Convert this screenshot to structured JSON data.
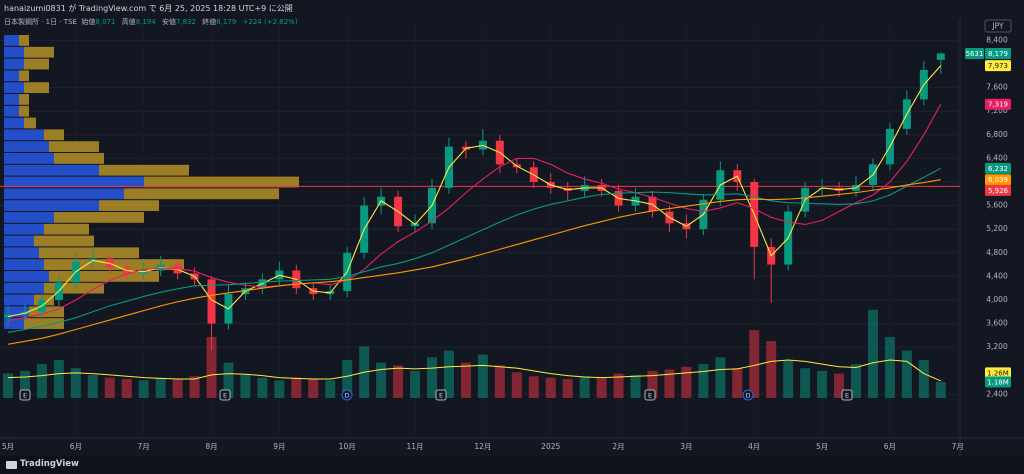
{
  "header": {
    "published": "hanaizumi0831 が TradingView.com で 6月 25, 2025 18:28 UTC+9 に公開"
  },
  "legend": {
    "symbol": "日本製鋼所 · 1日 · TSE",
    "items": [
      {
        "label": "始値",
        "value": "8,071"
      },
      {
        "label": "高値",
        "value": "8,194"
      },
      {
        "label": "安値",
        "value": "7,832"
      },
      {
        "label": "終値",
        "value": "8,179"
      }
    ],
    "change": "+224 (+2.82%)"
  },
  "events": [
    "E",
    "E",
    "D",
    "E",
    "E",
    "D",
    "E"
  ],
  "footer": "TradingView",
  "chart_data": {
    "type": "candlestick",
    "categories": [
      "5月",
      null,
      null,
      null,
      "6月",
      null,
      null,
      null,
      "7月",
      null,
      null,
      null,
      "8月",
      null,
      null,
      null,
      "9月",
      null,
      null,
      null,
      "10月",
      null,
      null,
      null,
      "11月",
      null,
      null,
      null,
      "12月",
      null,
      null,
      null,
      "2025",
      null,
      null,
      null,
      "2月",
      null,
      null,
      null,
      "3月",
      null,
      null,
      null,
      "4月",
      null,
      null,
      null,
      "5月",
      null,
      null,
      null,
      "6月",
      null,
      null,
      null,
      "7月"
    ],
    "open": [
      3700,
      3750,
      3800,
      4000,
      4300,
      4650,
      4700,
      4550,
      4450,
      4500,
      4600,
      4450,
      4350,
      3600,
      4100,
      4200,
      4350,
      4500,
      4200,
      4100,
      4150,
      4800,
      5600,
      5750,
      5250,
      5300,
      5900,
      6600,
      6550,
      6700,
      6300,
      6250,
      6000,
      5900,
      5850,
      5950,
      5850,
      5600,
      5750,
      5500,
      5300,
      5200,
      5700,
      6200,
      6000,
      4900,
      4600,
      5500,
      5900,
      5900,
      5850,
      5950,
      6300,
      6900,
      7400,
      8071,
      null
    ],
    "high": [
      3900,
      3950,
      4100,
      4400,
      4800,
      4850,
      4800,
      4650,
      4650,
      4750,
      4700,
      4550,
      4400,
      4250,
      4300,
      4450,
      4650,
      4600,
      4300,
      4250,
      4900,
      5750,
      5900,
      5850,
      5450,
      6050,
      6750,
      6700,
      6900,
      6800,
      6400,
      6350,
      6150,
      6000,
      6100,
      6050,
      5950,
      5900,
      5850,
      5600,
      5450,
      5800,
      6350,
      6300,
      6050,
      5050,
      5600,
      6000,
      6050,
      6000,
      6100,
      6400,
      7000,
      7550,
      8050,
      8194,
      null
    ],
    "low": [
      3550,
      3650,
      3700,
      3900,
      4200,
      4550,
      4450,
      4350,
      4350,
      4400,
      4350,
      4250,
      3150,
      3500,
      4000,
      4100,
      4250,
      4100,
      4000,
      4000,
      4050,
      4700,
      5450,
      5150,
      5150,
      5200,
      5800,
      6400,
      6450,
      6150,
      6150,
      5900,
      5800,
      5700,
      5750,
      5750,
      5500,
      5500,
      5400,
      5150,
      5050,
      5100,
      5600,
      5850,
      4350,
      3950,
      4500,
      5400,
      5750,
      5750,
      5750,
      5850,
      6200,
      6800,
      7300,
      7832,
      null
    ],
    "close": [
      3750,
      3800,
      4000,
      4300,
      4650,
      4700,
      4550,
      4450,
      4500,
      4600,
      4450,
      4350,
      3600,
      4100,
      4200,
      4350,
      4500,
      4200,
      4100,
      4150,
      4800,
      5600,
      5750,
      5250,
      5300,
      5900,
      6600,
      6550,
      6700,
      6300,
      6250,
      6000,
      5900,
      5850,
      5950,
      5850,
      5600,
      5750,
      5500,
      5300,
      5200,
      5700,
      6200,
      6000,
      4900,
      4600,
      5500,
      5900,
      5900,
      5850,
      5950,
      6300,
      6900,
      7400,
      7900,
      8179,
      null
    ],
    "close_label": "8,179",
    "up_color": "#089981",
    "down_color": "#f23645",
    "series": [
      {
        "color": "#ffeb3b",
        "last_label": "7,973",
        "values": [
          3720,
          3775,
          3900,
          4150,
          4480,
          4670,
          4620,
          4500,
          4480,
          4550,
          4520,
          4400,
          4000,
          3850,
          4150,
          4280,
          4420,
          4350,
          4150,
          4120,
          4480,
          5200,
          5680,
          5500,
          5280,
          5600,
          6250,
          6570,
          6620,
          6500,
          6270,
          6120,
          5950,
          5870,
          5900,
          5900,
          5720,
          5680,
          5620,
          5400,
          5250,
          5450,
          5950,
          6100,
          5450,
          4750,
          5050,
          5700,
          5900,
          5870,
          5900,
          6120,
          6600,
          7150,
          7650,
          7973,
          null
        ]
      },
      {
        "color": "#e91e63",
        "last_label": "7,319",
        "values": [
          3650,
          3700,
          3760,
          3850,
          4000,
          4180,
          4330,
          4440,
          4520,
          4540,
          4530,
          4490,
          4380,
          4300,
          4250,
          4220,
          4240,
          4270,
          4290,
          4260,
          4330,
          4520,
          4780,
          4990,
          5150,
          5340,
          5560,
          5820,
          6050,
          6260,
          6400,
          6400,
          6300,
          6150,
          6050,
          5980,
          5880,
          5820,
          5740,
          5640,
          5550,
          5500,
          5560,
          5650,
          5550,
          5400,
          5320,
          5280,
          5350,
          5500,
          5650,
          5780,
          6000,
          6350,
          6800,
          7319,
          null
        ]
      },
      {
        "color": "#089981",
        "last_label": "6,232",
        "values": [
          3450,
          3500,
          3560,
          3620,
          3700,
          3800,
          3900,
          3980,
          4060,
          4130,
          4190,
          4240,
          4250,
          4260,
          4280,
          4300,
          4320,
          4330,
          4340,
          4350,
          4400,
          4480,
          4560,
          4620,
          4700,
          4800,
          4930,
          5060,
          5190,
          5320,
          5440,
          5540,
          5620,
          5680,
          5740,
          5790,
          5810,
          5820,
          5830,
          5820,
          5800,
          5780,
          5790,
          5800,
          5750,
          5680,
          5650,
          5640,
          5630,
          5620,
          5630,
          5680,
          5780,
          5930,
          6080,
          6232,
          null
        ]
      },
      {
        "color": "#ff9800",
        "last_label": "6,039",
        "values": [
          3250,
          3300,
          3350,
          3420,
          3500,
          3580,
          3660,
          3740,
          3820,
          3900,
          3970,
          4030,
          4080,
          4120,
          4160,
          4200,
          4240,
          4270,
          4290,
          4310,
          4340,
          4380,
          4420,
          4460,
          4510,
          4560,
          4630,
          4700,
          4780,
          4860,
          4940,
          5020,
          5100,
          5180,
          5260,
          5330,
          5400,
          5460,
          5510,
          5550,
          5590,
          5630,
          5670,
          5700,
          5710,
          5700,
          5710,
          5730,
          5760,
          5790,
          5820,
          5860,
          5900,
          5950,
          5990,
          6039,
          null
        ]
      }
    ],
    "volume": {
      "vlim": [
        0,
        7000000
      ],
      "last_label": "1.18M",
      "label_color": "#089981",
      "values": [
        1800000,
        2000000,
        2500000,
        2800000,
        2200000,
        1700000,
        1500000,
        1400000,
        1300000,
        1500000,
        1400000,
        1600000,
        4500000,
        2600000,
        1700000,
        1500000,
        1300000,
        1500000,
        1400000,
        1300000,
        2800000,
        3800000,
        2600000,
        2400000,
        2000000,
        3000000,
        3500000,
        2600000,
        3200000,
        2400000,
        1900000,
        1600000,
        1500000,
        1400000,
        1600000,
        1500000,
        1800000,
        1700000,
        2000000,
        2100000,
        2300000,
        2500000,
        3000000,
        2200000,
        5000000,
        4200000,
        2800000,
        2200000,
        2000000,
        1800000,
        2500000,
        6500000,
        4500000,
        3500000,
        2800000,
        1180000,
        null
      ],
      "ma": {
        "color": "#ffeb3b",
        "last_label": "1.26M",
        "values": [
          1500000,
          1550000,
          1650000,
          1800000,
          1850000,
          1800000,
          1700000,
          1600000,
          1500000,
          1450000,
          1400000,
          1400000,
          1700000,
          1800000,
          1750000,
          1650000,
          1500000,
          1450000,
          1400000,
          1400000,
          1600000,
          1900000,
          2100000,
          2200000,
          2150000,
          2200000,
          2300000,
          2350000,
          2400000,
          2300000,
          2200000,
          2000000,
          1800000,
          1650000,
          1550000,
          1500000,
          1550000,
          1600000,
          1650000,
          1750000,
          1850000,
          1950000,
          2100000,
          2150000,
          2400000,
          2700000,
          2800000,
          2700000,
          2500000,
          2300000,
          2250000,
          2600000,
          2800000,
          2700000,
          1800000,
          1260000,
          null
        ]
      }
    },
    "volume_profile": {
      "xlim": [
        0,
        950
      ],
      "up_color": "#2962ff",
      "down_color": "#c9a227",
      "levels": [
        3600,
        3800,
        4000,
        4200,
        4400,
        4600,
        4800,
        5000,
        5200,
        5400,
        5600,
        5800,
        6000,
        6200,
        6400,
        6600,
        6800,
        7000,
        7200,
        7400,
        7600,
        7800,
        8000,
        8200,
        8400
      ],
      "up": [
        20,
        25,
        30,
        40,
        45,
        40,
        35,
        30,
        40,
        50,
        95,
        120,
        140,
        95,
        50,
        45,
        40,
        20,
        15,
        15,
        20,
        15,
        20,
        20,
        15
      ],
      "down": [
        40,
        35,
        20,
        60,
        110,
        140,
        100,
        60,
        45,
        90,
        60,
        155,
        155,
        90,
        50,
        50,
        20,
        12,
        10,
        10,
        25,
        10,
        25,
        30,
        10
      ]
    },
    "hline": {
      "value": 5926,
      "label": "5,926",
      "color": "#f23645"
    },
    "ylim": [
      2220,
      8780
    ],
    "yticks": [
      {
        "value": 2400,
        "label": "2,400"
      },
      {
        "value": 3200,
        "label": "3,200"
      },
      {
        "value": 3600,
        "label": "3,600"
      },
      {
        "value": 4000,
        "label": "4,000"
      },
      {
        "value": 4400,
        "label": "4,400"
      },
      {
        "value": 4800,
        "label": "4,800"
      },
      {
        "value": 5200,
        "label": "5,200"
      },
      {
        "value": 5600,
        "label": "5,600"
      },
      {
        "value": 6000,
        "label": "6,000"
      },
      {
        "value": 6400,
        "label": "6,400"
      },
      {
        "value": 6800,
        "label": "6,800"
      },
      {
        "value": 7200,
        "label": "7,200"
      },
      {
        "value": 7600,
        "label": "7,600"
      },
      {
        "value": 8400,
        "label": "8,400"
      }
    ],
    "grid": true,
    "currency": "JPY",
    "symbol_code": "5631"
  }
}
